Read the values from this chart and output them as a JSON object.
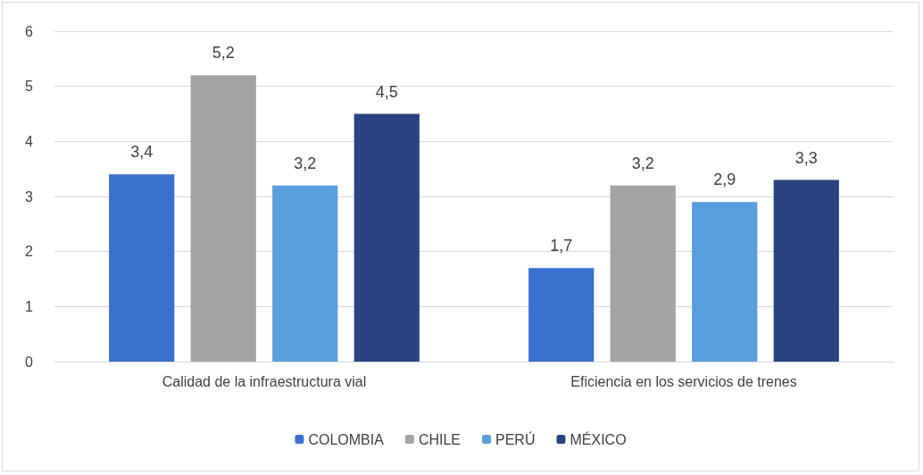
{
  "chart_data": {
    "type": "bar",
    "categories": [
      "Calidad de la infraestructura vial",
      "Eficiencia en los servicios de trenes"
    ],
    "series": [
      {
        "name": "COLOMBIA",
        "color": "#3b6fce",
        "values": [
          3.4,
          1.7
        ],
        "value_labels": [
          "3,4",
          "1,7"
        ]
      },
      {
        "name": "CHILE",
        "color": "#a3a3a3",
        "values": [
          5.2,
          3.2
        ],
        "value_labels": [
          "5,2",
          "3,2"
        ]
      },
      {
        "name": "PERÚ",
        "color": "#5a9ddb",
        "values": [
          3.2,
          2.9
        ],
        "value_labels": [
          "3,2",
          "2,9"
        ]
      },
      {
        "name": "MÉXICO",
        "color": "#2b4480",
        "values": [
          4.5,
          3.3
        ],
        "value_labels": [
          "4,5",
          "3,3"
        ]
      }
    ],
    "ylim": [
      0,
      6
    ],
    "yticks": [
      0,
      1,
      2,
      3,
      4,
      5,
      6
    ],
    "grid": "y",
    "legend": "bottom"
  }
}
